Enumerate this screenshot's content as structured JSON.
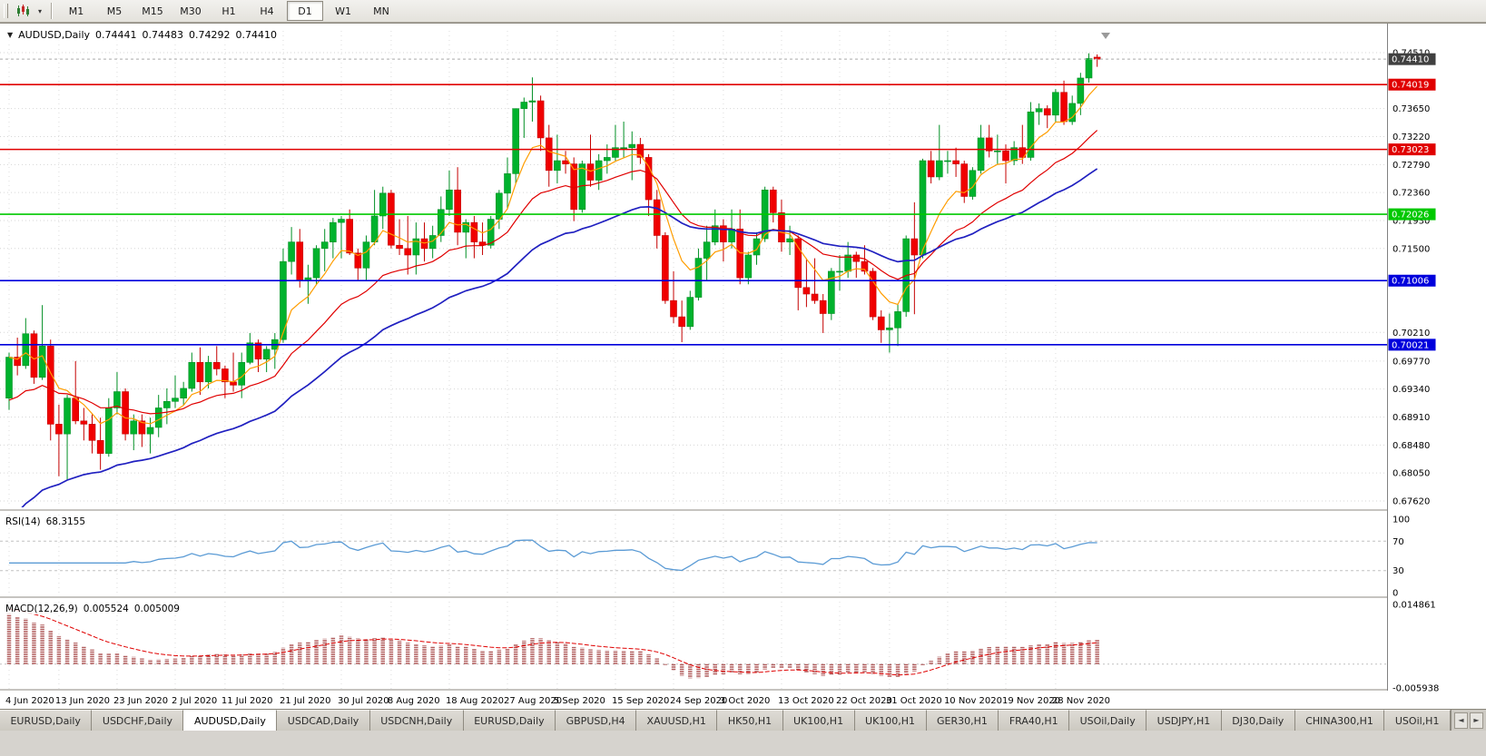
{
  "icons": {
    "dropdown": "▾",
    "header_marker": "▼",
    "tabs_scroll_left": "◄",
    "tabs_scroll_right": "►"
  },
  "toolbar": {
    "timeframes": [
      "M1",
      "M5",
      "M15",
      "M30",
      "H1",
      "H4",
      "D1",
      "W1",
      "MN"
    ],
    "active_timeframe": "D1"
  },
  "chart_header": {
    "symbol": "AUDUSD,Daily",
    "open": "0.74441",
    "high": "0.74483",
    "low": "0.74292",
    "close": "0.74410"
  },
  "chart_data": {
    "type": "candlestick",
    "title": "AUDUSD,Daily",
    "ylim": [
      0.67522,
      0.74845
    ],
    "colors": {
      "bull": "#00b22d",
      "bull_edge": "#008f24",
      "bear": "#f00000",
      "bear_edge": "#c40000",
      "grid": "#d6d6d6",
      "vgrid": "#dcdcdc",
      "ma_fast": "#ff9d00",
      "ma_mid": "#e00000",
      "ma_slow": "#2020c0",
      "rsi_line": "#5b9bd5",
      "level": "#c0c0c0",
      "macd_hist": "#b05c5c",
      "macd_signal": "#e00000",
      "axis": "#808080",
      "text": "#000000",
      "current_line": "#aaaaaa",
      "current_chip": "#404040"
    },
    "y_ticks": [
      "0.74510",
      "0.73650",
      "0.73220",
      "0.72790",
      "0.72360",
      "0.71930",
      "0.71500",
      "0.70210",
      "0.69770",
      "0.69340",
      "0.68910",
      "0.68480",
      "0.68050",
      "0.67620"
    ],
    "x_ticks": [
      {
        "label": "4 Jun 2020",
        "i": 0
      },
      {
        "label": "13 Jun 2020",
        "i": 6
      },
      {
        "label": "23 Jun 2020",
        "i": 13
      },
      {
        "label": "2 Jul 2020",
        "i": 20
      },
      {
        "label": "11 Jul 2020",
        "i": 26
      },
      {
        "label": "21 Jul 2020",
        "i": 33
      },
      {
        "label": "30 Jul 2020",
        "i": 40
      },
      {
        "label": "8 Aug 2020",
        "i": 46
      },
      {
        "label": "18 Aug 2020",
        "i": 53
      },
      {
        "label": "27 Aug 2020",
        "i": 60
      },
      {
        "label": "5 Sep 2020",
        "i": 66
      },
      {
        "label": "15 Sep 2020",
        "i": 73
      },
      {
        "label": "24 Sep 2020",
        "i": 80
      },
      {
        "label": "3 Oct 2020",
        "i": 86
      },
      {
        "label": "13 Oct 2020",
        "i": 93
      },
      {
        "label": "22 Oct 2020",
        "i": 100
      },
      {
        "label": "31 Oct 2020",
        "i": 106
      },
      {
        "label": "10 Nov 2020",
        "i": 113
      },
      {
        "label": "19 Nov 2020",
        "i": 120
      },
      {
        "label": "28 Nov 2020",
        "i": 126
      }
    ],
    "hlines": [
      {
        "price": 0.74019,
        "label": "0.74019",
        "color": "#e00000"
      },
      {
        "price": 0.73023,
        "label": "0.73023",
        "color": "#e00000"
      },
      {
        "price": 0.72026,
        "label": "0.72026",
        "color": "#00c800"
      },
      {
        "price": 0.71006,
        "label": "0.71006",
        "color": "#0000dc"
      },
      {
        "price": 0.70021,
        "label": "0.70021",
        "color": "#0000dc"
      }
    ],
    "current_price": {
      "price": 0.7441,
      "label": "0.74410"
    },
    "candles": [
      [
        0.692,
        0.699,
        0.6902,
        0.6983
      ],
      [
        0.6983,
        0.7013,
        0.6955,
        0.697
      ],
      [
        0.697,
        0.7043,
        0.6965,
        0.7019
      ],
      [
        0.7019,
        0.7024,
        0.6942,
        0.6952
      ],
      [
        0.6952,
        0.7063,
        0.6948,
        0.7
      ],
      [
        0.7,
        0.701,
        0.6855,
        0.688
      ],
      [
        0.688,
        0.691,
        0.68,
        0.6865
      ],
      [
        0.6865,
        0.6925,
        0.6795,
        0.692
      ],
      [
        0.692,
        0.6977,
        0.688,
        0.6885
      ],
      [
        0.6885,
        0.6905,
        0.6855,
        0.688
      ],
      [
        0.688,
        0.6895,
        0.6835,
        0.6855
      ],
      [
        0.6855,
        0.689,
        0.681,
        0.6835
      ],
      [
        0.6835,
        0.692,
        0.683,
        0.6905
      ],
      [
        0.6905,
        0.696,
        0.6895,
        0.693
      ],
      [
        0.693,
        0.6935,
        0.6855,
        0.6865
      ],
      [
        0.6865,
        0.6895,
        0.684,
        0.6885
      ],
      [
        0.6885,
        0.6895,
        0.6845,
        0.6865
      ],
      [
        0.6865,
        0.689,
        0.6835,
        0.6875
      ],
      [
        0.6875,
        0.6925,
        0.686,
        0.6905
      ],
      [
        0.6905,
        0.6935,
        0.688,
        0.6915
      ],
      [
        0.6915,
        0.6955,
        0.6905,
        0.692
      ],
      [
        0.692,
        0.6945,
        0.691,
        0.6935
      ],
      [
        0.6935,
        0.699,
        0.693,
        0.6975
      ],
      [
        0.6975,
        0.6998,
        0.6925,
        0.6945
      ],
      [
        0.6945,
        0.6985,
        0.6935,
        0.6975
      ],
      [
        0.6975,
        0.7,
        0.6955,
        0.6965
      ],
      [
        0.6965,
        0.697,
        0.692,
        0.6945
      ],
      [
        0.6945,
        0.699,
        0.693,
        0.694
      ],
      [
        0.694,
        0.699,
        0.692,
        0.6975
      ],
      [
        0.6975,
        0.702,
        0.6972,
        0.7005
      ],
      [
        0.7005,
        0.701,
        0.696,
        0.698
      ],
      [
        0.698,
        0.7,
        0.696,
        0.6995
      ],
      [
        0.6995,
        0.702,
        0.6965,
        0.701
      ],
      [
        0.701,
        0.715,
        0.7005,
        0.713
      ],
      [
        0.713,
        0.7183,
        0.711,
        0.716
      ],
      [
        0.716,
        0.718,
        0.709,
        0.71
      ],
      [
        0.71,
        0.7125,
        0.7065,
        0.7105
      ],
      [
        0.7105,
        0.7155,
        0.7095,
        0.715
      ],
      [
        0.715,
        0.718,
        0.7115,
        0.716
      ],
      [
        0.716,
        0.7197,
        0.7135,
        0.719
      ],
      [
        0.719,
        0.72,
        0.7135,
        0.7195
      ],
      [
        0.7195,
        0.721,
        0.714,
        0.7143
      ],
      [
        0.7143,
        0.715,
        0.71,
        0.712
      ],
      [
        0.712,
        0.717,
        0.71,
        0.716
      ],
      [
        0.716,
        0.724,
        0.7155,
        0.72
      ],
      [
        0.72,
        0.7245,
        0.718,
        0.7235
      ],
      [
        0.7235,
        0.724,
        0.715,
        0.7155
      ],
      [
        0.7155,
        0.7195,
        0.714,
        0.715
      ],
      [
        0.715,
        0.72,
        0.711,
        0.714
      ],
      [
        0.714,
        0.719,
        0.711,
        0.7165
      ],
      [
        0.7165,
        0.719,
        0.713,
        0.715
      ],
      [
        0.715,
        0.7185,
        0.7135,
        0.717
      ],
      [
        0.717,
        0.723,
        0.716,
        0.721
      ],
      [
        0.721,
        0.727,
        0.72,
        0.724
      ],
      [
        0.724,
        0.7275,
        0.7155,
        0.7175
      ],
      [
        0.7175,
        0.7195,
        0.7135,
        0.719
      ],
      [
        0.719,
        0.72,
        0.7135,
        0.716
      ],
      [
        0.716,
        0.719,
        0.714,
        0.7155
      ],
      [
        0.7155,
        0.72,
        0.715,
        0.7195
      ],
      [
        0.7195,
        0.724,
        0.718,
        0.7235
      ],
      [
        0.7235,
        0.729,
        0.721,
        0.7265
      ],
      [
        0.7265,
        0.7365,
        0.725,
        0.7365
      ],
      [
        0.7365,
        0.7382,
        0.732,
        0.7375
      ],
      [
        0.7375,
        0.7413,
        0.7345,
        0.7377
      ],
      [
        0.7377,
        0.7385,
        0.73,
        0.732
      ],
      [
        0.732,
        0.734,
        0.7245,
        0.727
      ],
      [
        0.727,
        0.7325,
        0.725,
        0.7285
      ],
      [
        0.7285,
        0.73,
        0.7265,
        0.728
      ],
      [
        0.728,
        0.729,
        0.7192,
        0.721
      ],
      [
        0.721,
        0.7285,
        0.7205,
        0.728
      ],
      [
        0.728,
        0.7325,
        0.7245,
        0.7255
      ],
      [
        0.7255,
        0.7295,
        0.724,
        0.7285
      ],
      [
        0.7285,
        0.731,
        0.7265,
        0.729
      ],
      [
        0.729,
        0.734,
        0.7285,
        0.7305
      ],
      [
        0.7305,
        0.7345,
        0.729,
        0.7305
      ],
      [
        0.7305,
        0.733,
        0.7255,
        0.731
      ],
      [
        0.731,
        0.732,
        0.728,
        0.729
      ],
      [
        0.729,
        0.7295,
        0.72,
        0.7225
      ],
      [
        0.7225,
        0.724,
        0.715,
        0.717
      ],
      [
        0.717,
        0.7175,
        0.7065,
        0.707
      ],
      [
        0.707,
        0.7115,
        0.7035,
        0.7045
      ],
      [
        0.7045,
        0.707,
        0.7006,
        0.703
      ],
      [
        0.703,
        0.7085,
        0.7025,
        0.7075
      ],
      [
        0.7075,
        0.715,
        0.707,
        0.7135
      ],
      [
        0.7135,
        0.7185,
        0.71,
        0.716
      ],
      [
        0.716,
        0.721,
        0.7155,
        0.7185
      ],
      [
        0.7185,
        0.7195,
        0.713,
        0.716
      ],
      [
        0.716,
        0.721,
        0.715,
        0.718
      ],
      [
        0.718,
        0.721,
        0.7095,
        0.7105
      ],
      [
        0.7105,
        0.7145,
        0.7095,
        0.714
      ],
      [
        0.714,
        0.7175,
        0.7125,
        0.7165
      ],
      [
        0.7165,
        0.7245,
        0.716,
        0.724
      ],
      [
        0.724,
        0.7245,
        0.719,
        0.7205
      ],
      [
        0.7205,
        0.7225,
        0.7145,
        0.716
      ],
      [
        0.716,
        0.7185,
        0.714,
        0.7165
      ],
      [
        0.7165,
        0.717,
        0.7055,
        0.709
      ],
      [
        0.709,
        0.7135,
        0.706,
        0.708
      ],
      [
        0.708,
        0.7135,
        0.7065,
        0.707
      ],
      [
        0.707,
        0.708,
        0.702,
        0.705
      ],
      [
        0.705,
        0.712,
        0.704,
        0.7115
      ],
      [
        0.7115,
        0.714,
        0.7085,
        0.7115
      ],
      [
        0.7115,
        0.716,
        0.7105,
        0.714
      ],
      [
        0.714,
        0.7145,
        0.7105,
        0.713
      ],
      [
        0.713,
        0.7155,
        0.711,
        0.7115
      ],
      [
        0.7115,
        0.712,
        0.704,
        0.7045
      ],
      [
        0.7045,
        0.7055,
        0.7005,
        0.7025
      ],
      [
        0.7025,
        0.705,
        0.699,
        0.7028
      ],
      [
        0.7028,
        0.7065,
        0.7,
        0.7053
      ],
      [
        0.7053,
        0.717,
        0.7045,
        0.7165
      ],
      [
        0.7165,
        0.7221,
        0.7049,
        0.714
      ],
      [
        0.714,
        0.7288,
        0.7135,
        0.7285
      ],
      [
        0.7285,
        0.73,
        0.725,
        0.726
      ],
      [
        0.726,
        0.734,
        0.7255,
        0.7285
      ],
      [
        0.7285,
        0.73,
        0.7265,
        0.7285
      ],
      [
        0.7285,
        0.7305,
        0.726,
        0.728
      ],
      [
        0.728,
        0.7285,
        0.722,
        0.723
      ],
      [
        0.723,
        0.7275,
        0.7225,
        0.727
      ],
      [
        0.727,
        0.734,
        0.7265,
        0.732
      ],
      [
        0.732,
        0.734,
        0.729,
        0.73
      ],
      [
        0.73,
        0.7325,
        0.728,
        0.73
      ],
      [
        0.73,
        0.731,
        0.725,
        0.7285
      ],
      [
        0.7285,
        0.7315,
        0.7278,
        0.7305
      ],
      [
        0.7305,
        0.734,
        0.728,
        0.729
      ],
      [
        0.729,
        0.7375,
        0.7285,
        0.736
      ],
      [
        0.736,
        0.7373,
        0.734,
        0.7365
      ],
      [
        0.7365,
        0.737,
        0.7335,
        0.7355
      ],
      [
        0.7355,
        0.7395,
        0.7345,
        0.739
      ],
      [
        0.739,
        0.7408,
        0.734,
        0.7345
      ],
      [
        0.7345,
        0.7385,
        0.734,
        0.7373
      ],
      [
        0.7373,
        0.742,
        0.7355,
        0.7412
      ],
      [
        0.7412,
        0.745,
        0.7405,
        0.7442
      ],
      [
        0.74441,
        0.74483,
        0.74292,
        0.7441
      ]
    ],
    "render_hints": {
      "moving_averages": [
        {
          "type": "ema",
          "period": 7,
          "color_key": "ma_fast",
          "width": 1.2
        },
        {
          "type": "ema",
          "period": 20,
          "color_key": "ma_mid",
          "width": 1.2,
          "seed": 0.691
        },
        {
          "type": "ema",
          "period": 40,
          "color_key": "ma_slow",
          "width": 1.7,
          "seed": 0.672
        }
      ],
      "macd_seeds": {
        "fast": 0.696,
        "slow": 0.6825,
        "signal": 0.014
      }
    },
    "indicators": {
      "rsi": {
        "name": "RSI(14)",
        "value": "68.3155",
        "period": 14,
        "range": [
          0,
          100
        ],
        "levels": [
          70,
          30
        ],
        "scale_labels": [
          {
            "v": 100,
            "label": "100"
          },
          {
            "v": 70,
            "label": "70"
          },
          {
            "v": 30,
            "label": "30"
          },
          {
            "v": 0,
            "label": "0"
          }
        ]
      },
      "macd": {
        "name": "MACD(12,26,9)",
        "value_main": "0.005524",
        "value_signal": "0.005009",
        "fast": 12,
        "slow": 26,
        "signal": 9,
        "range": [
          -0.005938,
          0.014861
        ],
        "scale_labels": [
          {
            "v": 0.014861,
            "label": "0.014861"
          },
          {
            "v": -0.005938,
            "label": "-0.005938"
          }
        ]
      }
    }
  },
  "bottom_tabs": {
    "active_index": 2,
    "tabs": [
      "EURUSD,Daily",
      "USDCHF,Daily",
      "AUDUSD,Daily",
      "USDCAD,Daily",
      "USDCNH,Daily",
      "EURUSD,Daily",
      "GBPUSD,H4",
      "XAUUSD,H1",
      "HK50,H1",
      "UK100,H1",
      "UK100,H1",
      "GER30,H1",
      "FRA40,H1",
      "USOil,Daily",
      "USDJPY,H1",
      "DJ30,Daily",
      "CHINA300,H1",
      "USOil,H1"
    ]
  }
}
